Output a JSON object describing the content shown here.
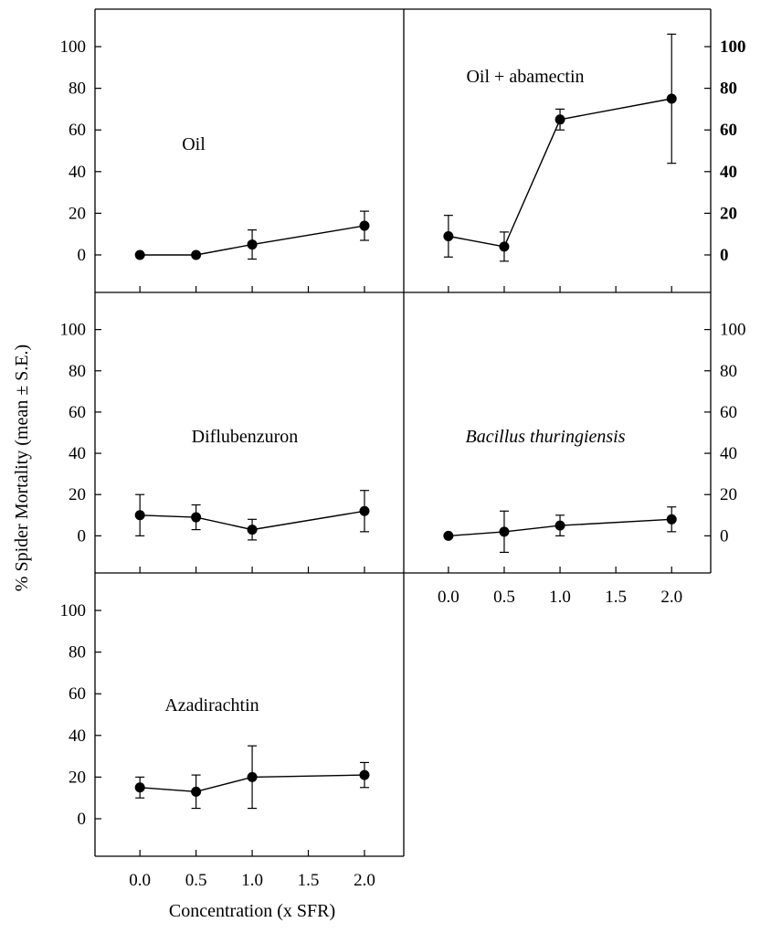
{
  "chart_data": {
    "type": "line",
    "ylabel": "% Spider Mortality (mean ± S.E.)",
    "xlabel": "Concentration (x SFR)",
    "ylim": [
      -18,
      118
    ],
    "xlim": [
      -0.4,
      2.35
    ],
    "y_ticks": [
      0,
      20,
      40,
      60,
      80,
      100
    ],
    "x_ticks": [
      0.0,
      0.5,
      1.0,
      1.5,
      2.0
    ],
    "x_tick_labels": [
      "0.0",
      "0.5",
      "1.0",
      "1.5",
      "2.0"
    ],
    "x_points": [
      0.0,
      0.5,
      1.0,
      2.0
    ],
    "panels": [
      {
        "label": "Oil",
        "italic": false,
        "values": [
          0,
          0,
          5,
          14
        ],
        "se": [
          0,
          0,
          7,
          7
        ]
      },
      {
        "label": "Oil + abamectin",
        "italic": false,
        "values": [
          9,
          4,
          65,
          75
        ],
        "se": [
          10,
          7,
          5,
          31
        ]
      },
      {
        "label": "Diflubenzuron",
        "italic": false,
        "values": [
          10,
          9,
          3,
          12
        ],
        "se": [
          10,
          6,
          5,
          10
        ]
      },
      {
        "label": "Bacillus thuringiensis",
        "italic": true,
        "values": [
          0,
          2,
          5,
          8
        ],
        "se": [
          0,
          10,
          5,
          6
        ]
      },
      {
        "label": "Azadirachtin",
        "italic": false,
        "values": [
          15,
          13,
          20,
          21
        ],
        "se": [
          5,
          8,
          15,
          6
        ]
      }
    ]
  }
}
